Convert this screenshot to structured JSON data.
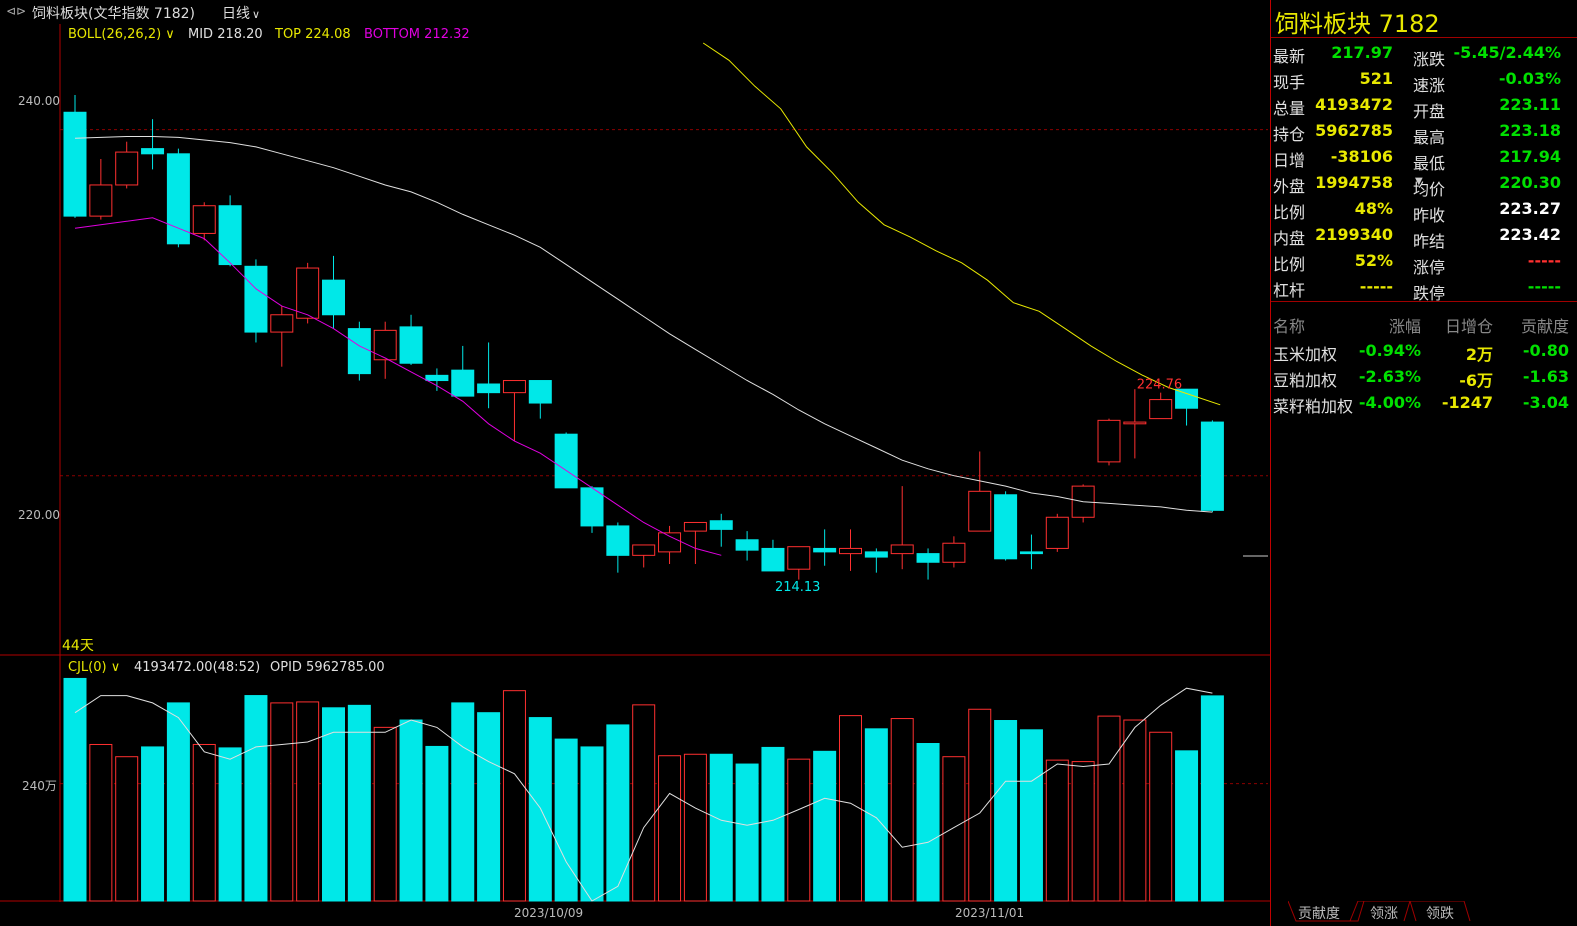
{
  "topbar": {
    "title": "饲料板块(文华指数 7182)",
    "period": "日线"
  },
  "indicators": {
    "boll_name": "BOLL(26,26,2)",
    "boll_mid": "MID 218.20",
    "boll_top": "TOP 224.08",
    "boll_bottom": "BOTTOM 212.32",
    "days_label": "44天",
    "vol_name": "CJL(0)",
    "vol_value": "4193472.00(48:52)",
    "vol_opid": "OPID 5962785.00"
  },
  "axis": {
    "price_240": "240.00",
    "price_220": "220.00",
    "vol_240w": "240万",
    "date_1": "2023/10/09",
    "date_2": "2023/11/01",
    "high_mark": "224.76",
    "low_mark": "214.13"
  },
  "chart_data": {
    "type": "candlestick",
    "price_range": [
      209.7,
      246.1
    ],
    "volume_range": [
      0,
      4600000
    ],
    "candles": [
      {
        "o": 241.0,
        "h": 242.0,
        "l": 234.9,
        "c": 235.0,
        "v": 4550000
      },
      {
        "o": 235.0,
        "h": 238.3,
        "l": 234.8,
        "c": 236.8,
        "v": 3200000
      },
      {
        "o": 236.8,
        "h": 239.3,
        "l": 236.6,
        "c": 238.7,
        "v": 2950000
      },
      {
        "o": 238.9,
        "h": 240.6,
        "l": 237.7,
        "c": 238.6,
        "v": 3150000
      },
      {
        "o": 238.6,
        "h": 238.9,
        "l": 233.2,
        "c": 233.4,
        "v": 4050000
      },
      {
        "o": 234.0,
        "h": 235.8,
        "l": 233.6,
        "c": 235.6,
        "v": 3200000
      },
      {
        "o": 235.6,
        "h": 236.2,
        "l": 232.1,
        "c": 232.2,
        "v": 3130000
      },
      {
        "o": 232.1,
        "h": 232.5,
        "l": 227.7,
        "c": 228.3,
        "v": 4200000
      },
      {
        "o": 228.3,
        "h": 229.8,
        "l": 226.3,
        "c": 229.3,
        "v": 4050000
      },
      {
        "o": 229.1,
        "h": 232.3,
        "l": 228.8,
        "c": 232.0,
        "v": 4070000
      },
      {
        "o": 231.3,
        "h": 232.7,
        "l": 228.5,
        "c": 229.3,
        "v": 3950000
      },
      {
        "o": 228.5,
        "h": 228.9,
        "l": 225.5,
        "c": 225.9,
        "v": 4000000
      },
      {
        "o": 226.7,
        "h": 228.9,
        "l": 225.6,
        "c": 228.4,
        "v": 3550000
      },
      {
        "o": 228.6,
        "h": 229.3,
        "l": 226.4,
        "c": 226.5,
        "v": 3700000
      },
      {
        "o": 225.8,
        "h": 226.2,
        "l": 224.9,
        "c": 225.5,
        "v": 3160000
      },
      {
        "o": 226.1,
        "h": 227.5,
        "l": 224.7,
        "c": 224.6,
        "v": 4050000
      },
      {
        "o": 225.3,
        "h": 227.7,
        "l": 223.9,
        "c": 224.8,
        "v": 3850000
      },
      {
        "o": 224.8,
        "h": 225.4,
        "l": 222.0,
        "c": 225.5,
        "v": 4300000
      },
      {
        "o": 225.5,
        "h": 225.3,
        "l": 223.3,
        "c": 224.2,
        "v": 3750000
      },
      {
        "o": 222.4,
        "h": 222.5,
        "l": 219.3,
        "c": 219.3,
        "v": 3310000
      },
      {
        "o": 219.3,
        "h": 219.4,
        "l": 216.7,
        "c": 217.1,
        "v": 3150000
      },
      {
        "o": 217.1,
        "h": 217.3,
        "l": 214.4,
        "c": 215.4,
        "v": 3600000
      },
      {
        "o": 215.4,
        "h": 216.0,
        "l": 214.7,
        "c": 216.0,
        "v": 4010000
      },
      {
        "o": 215.6,
        "h": 217.1,
        "l": 214.9,
        "c": 216.7,
        "v": 2970000
      },
      {
        "o": 216.8,
        "h": 217.3,
        "l": 214.9,
        "c": 217.3,
        "v": 3000000
      },
      {
        "o": 217.4,
        "h": 217.8,
        "l": 215.9,
        "c": 216.9,
        "v": 3000000
      },
      {
        "o": 216.3,
        "h": 216.8,
        "l": 215.1,
        "c": 215.7,
        "v": 2800000
      },
      {
        "o": 215.8,
        "h": 216.3,
        "l": 214.5,
        "c": 214.5,
        "v": 3140000
      },
      {
        "o": 214.6,
        "h": 215.9,
        "l": 214.0,
        "c": 215.9,
        "v": 2900000
      },
      {
        "o": 215.8,
        "h": 216.9,
        "l": 214.8,
        "c": 215.6,
        "v": 3060000
      },
      {
        "o": 215.5,
        "h": 216.9,
        "l": 214.5,
        "c": 215.8,
        "v": 3790000
      },
      {
        "o": 215.6,
        "h": 215.8,
        "l": 214.4,
        "c": 215.3,
        "v": 3520000
      },
      {
        "o": 215.5,
        "h": 219.4,
        "l": 214.6,
        "c": 216.0,
        "v": 3730000
      },
      {
        "o": 215.5,
        "h": 215.8,
        "l": 214.0,
        "c": 215.0,
        "v": 3220000
      },
      {
        "o": 215.0,
        "h": 216.5,
        "l": 214.7,
        "c": 216.1,
        "v": 2950000
      },
      {
        "o": 216.8,
        "h": 221.4,
        "l": 216.8,
        "c": 219.1,
        "v": 3920000
      },
      {
        "o": 218.9,
        "h": 219.1,
        "l": 215.1,
        "c": 215.2,
        "v": 3690000
      },
      {
        "o": 215.6,
        "h": 216.6,
        "l": 214.6,
        "c": 215.5,
        "v": 3500000
      },
      {
        "o": 215.8,
        "h": 217.8,
        "l": 215.6,
        "c": 217.6,
        "v": 2880000
      },
      {
        "o": 217.6,
        "h": 219.5,
        "l": 217.3,
        "c": 219.4,
        "v": 2850000
      },
      {
        "o": 220.8,
        "h": 223.3,
        "l": 220.6,
        "c": 223.2,
        "v": 3780000
      },
      {
        "o": 223.0,
        "h": 225.0,
        "l": 221.0,
        "c": 223.1,
        "v": 3700000
      },
      {
        "o": 223.3,
        "h": 224.8,
        "l": 223.3,
        "c": 224.4,
        "v": 3450000
      },
      {
        "o": 225.0,
        "h": 225.0,
        "l": 222.9,
        "c": 223.9,
        "v": 3070000
      },
      {
        "o": 223.1,
        "h": 223.2,
        "l": 217.9,
        "c": 218.0,
        "v": 4193472
      }
    ],
    "boll_mid": [
      239.5,
      239.55,
      239.6,
      239.6,
      239.55,
      239.4,
      239.25,
      239.0,
      238.6,
      238.2,
      237.8,
      237.3,
      236.8,
      236.4,
      235.8,
      235.1,
      234.5,
      233.9,
      233.2,
      232.2,
      231.2,
      230.2,
      229.2,
      228.2,
      227.3,
      226.4,
      225.5,
      224.7,
      223.8,
      223.0,
      222.3,
      221.6,
      220.9,
      220.4,
      220.0,
      219.7,
      219.4,
      219.0,
      218.8,
      218.5,
      218.4,
      218.3,
      218.2,
      218.0,
      217.9
    ],
    "boll_top_points": [
      [
        24.3,
        245.0
      ],
      [
        25.3,
        244.0
      ],
      [
        26.3,
        242.5
      ],
      [
        27.3,
        241.2
      ],
      [
        28.3,
        239.0
      ],
      [
        29.3,
        237.5
      ],
      [
        30.3,
        235.8
      ],
      [
        31.3,
        234.5
      ],
      [
        32.3,
        233.8
      ],
      [
        33.3,
        233.0
      ],
      [
        34.3,
        232.3
      ],
      [
        35.3,
        231.3
      ],
      [
        36.3,
        230.0
      ],
      [
        37.3,
        229.5
      ],
      [
        38.3,
        228.5
      ],
      [
        39.3,
        227.5
      ],
      [
        40.3,
        226.6
      ],
      [
        41.3,
        225.8
      ],
      [
        42.3,
        225.1
      ],
      [
        43.3,
        224.6
      ],
      [
        44.3,
        224.1
      ]
    ],
    "boll_bottom_points": [
      [
        0,
        234.3
      ],
      [
        1,
        234.5
      ],
      [
        2,
        234.7
      ],
      [
        3,
        234.9
      ],
      [
        4,
        234.3
      ],
      [
        5,
        233.7
      ],
      [
        6,
        232.3
      ],
      [
        7,
        230.8
      ],
      [
        8,
        229.8
      ],
      [
        9,
        229.3
      ],
      [
        10,
        228.5
      ],
      [
        11,
        227.5
      ],
      [
        12,
        226.8
      ],
      [
        13,
        226.0
      ],
      [
        14,
        225.2
      ],
      [
        15,
        224.3
      ],
      [
        16,
        223.0
      ],
      [
        17,
        222.0
      ],
      [
        18,
        221.3
      ],
      [
        19,
        220.3
      ],
      [
        20,
        219.3
      ],
      [
        21,
        218.3
      ],
      [
        22,
        217.3
      ],
      [
        23,
        216.5
      ],
      [
        24,
        215.8
      ],
      [
        25,
        215.4
      ]
    ],
    "vol_ma": [
      3850000,
      4200000,
      4200000,
      4050000,
      3750000,
      3050000,
      2900000,
      3150000,
      3200000,
      3250000,
      3450000,
      3450000,
      3450000,
      3700000,
      3550000,
      3150000,
      2850000,
      2600000,
      1900000,
      800000,
      -100000,
      300000,
      1500000,
      2200000,
      1900000,
      1650000,
      1550000,
      1650000,
      1870000,
      2100000,
      2000000,
      1700000,
      1100000,
      1200000,
      1500000,
      1800000,
      2450000,
      2450000,
      2800000,
      2750000,
      2800000,
      3550000,
      4000000,
      4350000,
      4250000
    ]
  },
  "panel": {
    "title": "饲料板块  7182",
    "quote_rows": [
      {
        "k1": "最新",
        "v1": "217.97",
        "c1": "#00e000",
        "k2": "涨跌",
        "v2": "-5.45/2.44%",
        "c2": "#00e000"
      },
      {
        "k1": "现手",
        "v1": "521",
        "c1": "#e8e800",
        "k2": "速涨",
        "v2": "-0.03%",
        "c2": "#00e000"
      },
      {
        "k1": "总量",
        "v1": "4193472",
        "c1": "#e8e800",
        "k2": "开盘",
        "v2": "223.11",
        "c2": "#00e000"
      },
      {
        "k1": "持仓",
        "v1": "5962785",
        "c1": "#e8e800",
        "k2": "最高",
        "v2": "223.18",
        "c2": "#00e000"
      },
      {
        "k1": "日增",
        "v1": "-38106",
        "c1": "#e8e800",
        "k2": "最低",
        "v2": "217.94",
        "c2": "#00e000"
      },
      {
        "k1": "外盘",
        "v1": "1994758",
        "c1": "#e8e800",
        "k2": "均价",
        "v2": "220.30",
        "c2": "#00e000"
      },
      {
        "k1": "比例",
        "v1": "48%",
        "c1": "#e8e800",
        "k2": "昨收",
        "v2": "223.27",
        "c2": "#ffffff"
      },
      {
        "k1": "内盘",
        "v1": "2199340",
        "c1": "#e8e800",
        "k2": "昨结",
        "v2": "223.42",
        "c2": "#ffffff"
      },
      {
        "k1": "比例",
        "v1": "52%",
        "c1": "#e8e800",
        "k2": "涨停",
        "v2": "-----",
        "c2": "#ff3030"
      },
      {
        "k1": "杠杆",
        "v1": "-----",
        "c1": "#e8e800",
        "k2": "跌停",
        "v2": "-----",
        "c2": "#00e000"
      }
    ],
    "contrib_header": {
      "name": "名称",
      "chg": "涨幅",
      "oi": "日增仓",
      "con": "贡献度"
    },
    "contrib_rows": [
      {
        "name": "玉米加权",
        "chg": "-0.94%",
        "oi": "2万",
        "con": "-0.80"
      },
      {
        "name": "豆粕加权",
        "chg": "-2.63%",
        "oi": "-6万",
        "con": "-1.63"
      },
      {
        "name": "菜籽粕加权",
        "chg": "-4.00%",
        "oi": "-1247",
        "con": "-3.04"
      }
    ]
  },
  "bottom_tabs": [
    "贡献度",
    "领涨",
    "领跌"
  ],
  "colors": {
    "up": "#ff3030",
    "down": "#00e8e8",
    "mid": "#e0e0e0",
    "top": "#e8e800",
    "bottom": "#e000e0",
    "grid": "#8a0000",
    "value_green": "#00e000",
    "value_yellow": "#e8e800"
  }
}
